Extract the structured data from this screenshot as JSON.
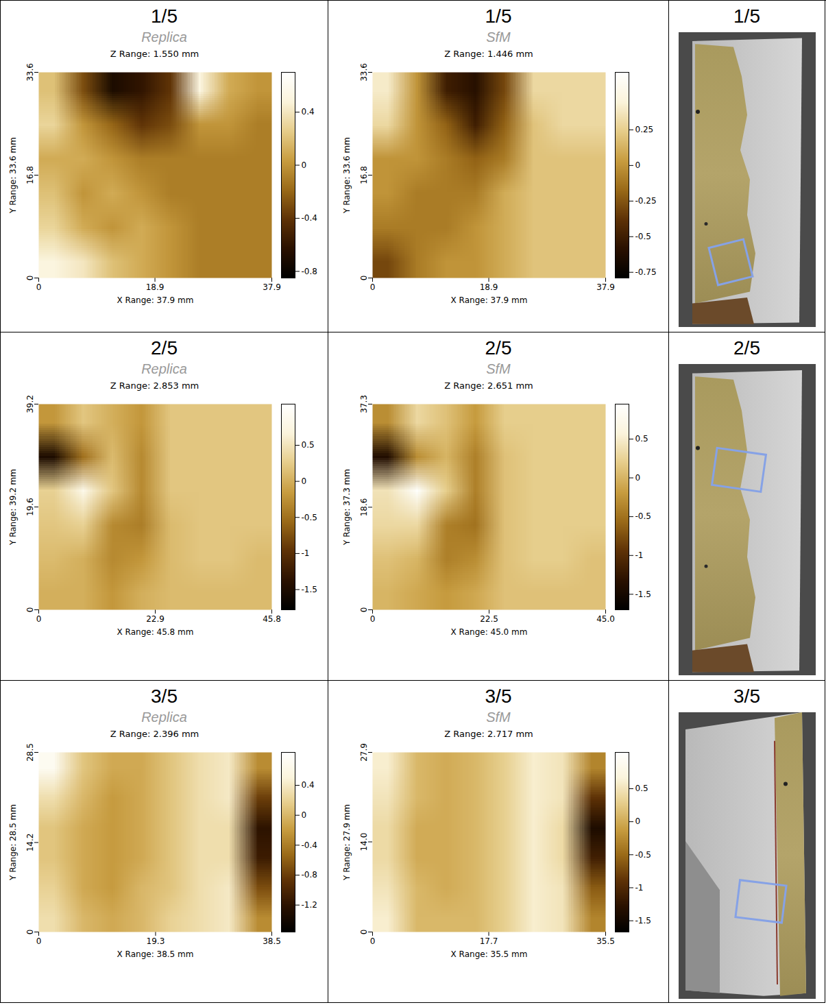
{
  "chart_data": [
    {
      "type": "heatmap",
      "panel_label": "1/5",
      "subtitle": "Replica",
      "title": "Z Range: 1.550 mm",
      "xlabel": "X Range: 37.9 mm",
      "ylabel": "Y Range: 33.6 mm",
      "xlim": [
        0,
        37.9
      ],
      "xticks": [
        0,
        18.9,
        37.9
      ],
      "ylim": [
        0,
        33.6
      ],
      "yticks": [
        0,
        16.8,
        33.6
      ],
      "cells": [
        [
          0.2,
          -0.3,
          -0.7,
          -0.6,
          -0.4,
          0.5,
          0.1,
          0.0
        ],
        [
          0.3,
          0.0,
          -0.2,
          -0.4,
          -0.3,
          0.0,
          0.0,
          -0.1
        ],
        [
          0.1,
          0.1,
          0.0,
          -0.1,
          -0.1,
          -0.1,
          -0.1,
          -0.1
        ],
        [
          0.2,
          0.0,
          0.1,
          0.0,
          -0.1,
          -0.1,
          -0.1,
          -0.1
        ],
        [
          0.3,
          0.1,
          0.0,
          0.1,
          0.0,
          -0.1,
          -0.1,
          -0.1
        ],
        [
          0.5,
          0.4,
          0.2,
          0.1,
          0.0,
          -0.1,
          -0.1,
          -0.1
        ]
      ],
      "colorbar_range": [
        -0.85,
        0.7
      ],
      "colorbar_ticks": [
        0.4,
        0,
        -0.4,
        -0.8
      ]
    },
    {
      "type": "heatmap",
      "panel_label": "1/5",
      "subtitle": "SfM",
      "title": "Z Range: 1.446 mm",
      "xlabel": "X Range: 37.9 mm",
      "ylabel": "Y Range: 33.6 mm",
      "xlim": [
        0,
        37.9
      ],
      "xticks": [
        0,
        18.9,
        37.9
      ],
      "ylim": [
        0,
        33.6
      ],
      "yticks": [
        0,
        16.8,
        33.6
      ],
      "cells": [
        [
          0.4,
          0.0,
          -0.5,
          -0.6,
          -0.3,
          0.3,
          0.3,
          0.3
        ],
        [
          0.3,
          0.0,
          -0.2,
          -0.5,
          -0.2,
          0.2,
          0.3,
          0.3
        ],
        [
          0.0,
          0.0,
          -0.1,
          -0.2,
          -0.1,
          0.2,
          0.2,
          0.2
        ],
        [
          0.0,
          -0.1,
          -0.1,
          -0.1,
          0.1,
          0.2,
          0.2,
          0.2
        ],
        [
          -0.1,
          -0.1,
          -0.1,
          0.0,
          0.1,
          0.2,
          0.2,
          0.2
        ],
        [
          -0.3,
          -0.1,
          0.0,
          0.0,
          0.1,
          0.2,
          0.2,
          0.2
        ]
      ],
      "colorbar_range": [
        -0.79,
        0.654
      ],
      "colorbar_ticks": [
        0.25,
        0,
        -0.25,
        -0.5,
        -0.75
      ]
    },
    {
      "type": "heatmap",
      "panel_label": "2/5",
      "subtitle": "Replica",
      "title": "Z Range: 2.853 mm",
      "xlabel": "X Range: 45.8 mm",
      "ylabel": "Y Range: 39.2 mm",
      "xlim": [
        0,
        45.8
      ],
      "xticks": [
        0,
        22.9,
        45.8
      ],
      "ylim": [
        0,
        39.2
      ],
      "yticks": [
        0,
        19.6,
        39.2
      ],
      "cells": [
        [
          -0.2,
          0.2,
          0.0,
          -0.2,
          0.2,
          0.2,
          0.2,
          0.2
        ],
        [
          -1.5,
          -0.5,
          0.1,
          -0.3,
          0.2,
          0.2,
          0.2,
          0.2
        ],
        [
          0.3,
          0.8,
          0.2,
          -0.3,
          0.2,
          0.2,
          0.2,
          0.2
        ],
        [
          0.2,
          0.3,
          -0.3,
          -0.4,
          0.1,
          0.2,
          0.2,
          0.2
        ],
        [
          0.1,
          0.0,
          -0.3,
          -0.2,
          0.1,
          0.2,
          0.2,
          0.1
        ],
        [
          0.0,
          0.0,
          -0.2,
          0.0,
          0.1,
          0.1,
          0.1,
          0.1
        ]
      ],
      "colorbar_range": [
        -1.78,
        1.07
      ],
      "colorbar_ticks": [
        0.5,
        0,
        -0.5,
        -1,
        -1.5
      ]
    },
    {
      "type": "heatmap",
      "panel_label": "2/5",
      "subtitle": "SfM",
      "title": "Z Range: 2.651 mm",
      "xlabel": "X Range: 45.0 mm",
      "ylabel": "Y Range: 37.3 mm",
      "xlim": [
        0,
        45
      ],
      "xticks": [
        0,
        22.5,
        {
          "value": 45,
          "label": "45.0"
        }
      ],
      "ylim": [
        0,
        37.3
      ],
      "yticks": [
        0,
        18.6,
        37.3
      ],
      "cells": [
        [
          -0.3,
          0.3,
          0.1,
          -0.2,
          0.2,
          0.2,
          0.2,
          0.2
        ],
        [
          -1.4,
          -0.3,
          0.0,
          -0.4,
          0.1,
          0.2,
          0.2,
          0.2
        ],
        [
          0.4,
          0.9,
          0.2,
          -0.4,
          0.1,
          0.2,
          0.2,
          0.2
        ],
        [
          0.3,
          0.3,
          -0.4,
          -0.5,
          0.1,
          0.2,
          0.2,
          0.2
        ],
        [
          0.1,
          0.0,
          -0.4,
          -0.3,
          0.1,
          0.2,
          0.2,
          0.1
        ],
        [
          0.0,
          -0.1,
          -0.2,
          -0.1,
          0.1,
          0.1,
          0.1,
          0.1
        ]
      ],
      "colorbar_range": [
        -1.7,
        0.95
      ],
      "colorbar_ticks": [
        0.5,
        0,
        -0.5,
        -1,
        -1.5
      ]
    },
    {
      "type": "heatmap",
      "panel_label": "3/5",
      "subtitle": "Replica",
      "title": "Z Range: 2.396 mm",
      "xlabel": "X Range: 38.5 mm",
      "ylabel": "Y Range: 28.5 mm",
      "xlim": [
        0,
        38.5
      ],
      "xticks": [
        0,
        19.3,
        38.5
      ],
      "ylim": [
        0,
        28.5
      ],
      "yticks": [
        0,
        14.2,
        28.5
      ],
      "cells": [
        [
          0.7,
          0.1,
          -0.1,
          -0.1,
          0.1,
          0.3,
          0.4,
          -0.3
        ],
        [
          0.3,
          0.0,
          -0.2,
          -0.1,
          0.1,
          0.3,
          0.4,
          -0.8
        ],
        [
          0.1,
          -0.1,
          -0.2,
          -0.1,
          0.1,
          0.3,
          0.3,
          -1.2
        ],
        [
          0.1,
          -0.1,
          -0.2,
          -0.1,
          0.1,
          0.3,
          0.3,
          -1.1
        ],
        [
          0.2,
          -0.1,
          -0.2,
          0.0,
          0.1,
          0.3,
          0.4,
          -0.7
        ],
        [
          0.3,
          0.0,
          -0.1,
          0.0,
          0.2,
          0.3,
          0.4,
          -0.3
        ]
      ],
      "colorbar_range": [
        -1.56,
        0.84
      ],
      "colorbar_ticks": [
        0.4,
        0,
        -0.4,
        -0.8,
        -1.2
      ]
    },
    {
      "type": "heatmap",
      "panel_label": "3/5",
      "subtitle": "SfM",
      "title": "Z Range: 2.717 mm",
      "xlabel": "X Range: 35.5 mm",
      "ylabel": "Y Range: 27.9 mm",
      "xlim": [
        0,
        35.5
      ],
      "xticks": [
        0,
        17.7,
        35.5
      ],
      "ylim": [
        0,
        27.9
      ],
      "yticks": [
        0,
        {
          "value": 14,
          "label": "14.0"
        },
        27.9
      ],
      "cells": [
        [
          0.6,
          0.1,
          0.0,
          0.1,
          0.3,
          0.6,
          0.5,
          -0.3
        ],
        [
          0.5,
          0.1,
          0.0,
          0.1,
          0.3,
          0.6,
          0.5,
          -0.9
        ],
        [
          0.4,
          0.0,
          0.0,
          0.1,
          0.3,
          0.6,
          0.4,
          -1.4
        ],
        [
          0.4,
          0.0,
          0.0,
          0.1,
          0.3,
          0.6,
          0.4,
          -1.1
        ],
        [
          0.5,
          0.1,
          0.0,
          0.1,
          0.3,
          0.6,
          0.5,
          -0.6
        ],
        [
          0.6,
          0.1,
          0.1,
          0.1,
          0.3,
          0.6,
          0.5,
          -0.3
        ]
      ],
      "colorbar_range": [
        -1.67,
        1.05
      ],
      "colorbar_ticks": [
        0.5,
        0,
        -0.5,
        -1,
        -1.5
      ]
    }
  ],
  "model_views": [
    {
      "panel_label": "1/5"
    },
    {
      "panel_label": "2/5"
    },
    {
      "panel_label": "3/5"
    }
  ]
}
